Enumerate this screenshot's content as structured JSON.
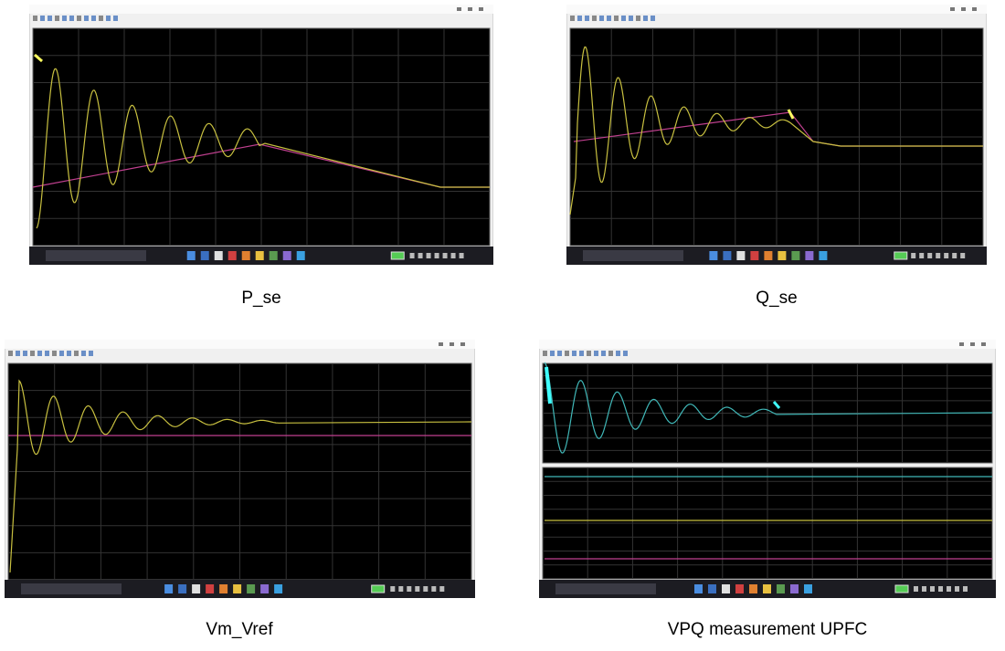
{
  "captions": [
    "P_se",
    "Q_se",
    "Vm_Vref",
    "VPQ measurement UPFC"
  ]
}
